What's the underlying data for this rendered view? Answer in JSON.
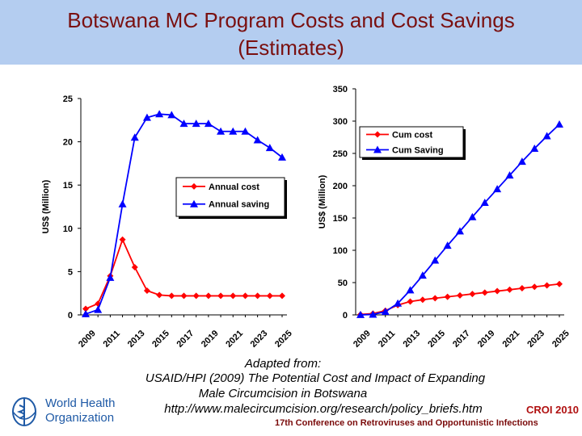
{
  "title": {
    "line1": "Botswana MC Program Costs and Cost Savings",
    "line2": "(Estimates)"
  },
  "chart_data": [
    {
      "type": "line",
      "ylabel": "US$ (Million)",
      "ylim": [
        0,
        25
      ],
      "yticks": [
        "0",
        "5",
        "10",
        "15",
        "20",
        "25"
      ],
      "xticks": [
        "2009",
        "2011",
        "2013",
        "2015",
        "2017",
        "2019",
        "2021",
        "2023",
        "2025"
      ],
      "x": [
        2009,
        2010,
        2011,
        2012,
        2013,
        2014,
        2015,
        2016,
        2017,
        2018,
        2019,
        2020,
        2021,
        2022,
        2023,
        2024,
        2025
      ],
      "legend_position": "center-right",
      "grid": false,
      "series": [
        {
          "name": "Annual cost",
          "color": "#ff0000",
          "marker": "diamond",
          "values": [
            0.7,
            1.3,
            4.5,
            8.7,
            5.5,
            2.8,
            2.3,
            2.2,
            2.2,
            2.2,
            2.2,
            2.2,
            2.2,
            2.2,
            2.2,
            2.2,
            2.2
          ]
        },
        {
          "name": "Annual saving",
          "color": "#0000ff",
          "marker": "triangle",
          "values": [
            0.1,
            0.6,
            4.3,
            12.8,
            20.5,
            22.8,
            23.2,
            23.1,
            22.1,
            22.1,
            22.1,
            21.2,
            21.2,
            21.2,
            20.2,
            19.3,
            18.2
          ]
        }
      ]
    },
    {
      "type": "line",
      "ylabel": "US$ (Million)",
      "ylim": [
        0,
        350
      ],
      "yticks": [
        "0",
        "50",
        "100",
        "150",
        "200",
        "250",
        "300",
        "350"
      ],
      "xticks": [
        "2009",
        "2011",
        "2013",
        "2015",
        "2017",
        "2019",
        "2021",
        "2023",
        "2025"
      ],
      "x": [
        2009,
        2010,
        2011,
        2012,
        2013,
        2014,
        2015,
        2016,
        2017,
        2018,
        2019,
        2020,
        2021,
        2022,
        2023,
        2024,
        2025
      ],
      "legend_position": "top-left",
      "grid": false,
      "series": [
        {
          "name": "Cum cost",
          "color": "#ff0000",
          "marker": "diamond",
          "values": [
            0.7,
            2,
            6.5,
            15.2,
            20.7,
            23.5,
            25.8,
            28,
            30.2,
            32.4,
            34.6,
            36.8,
            39,
            41.2,
            43.4,
            45.6,
            47.8
          ]
        },
        {
          "name": "Cum Saving",
          "color": "#0000ff",
          "marker": "triangle",
          "values": [
            0.1,
            0.7,
            5,
            17.8,
            38.3,
            61.1,
            84.3,
            107.4,
            129.5,
            151.6,
            173.7,
            194.9,
            216.1,
            237.3,
            257.5,
            276.8,
            295
          ]
        }
      ]
    }
  ],
  "source": {
    "line1": "Adapted from:",
    "line2": "USAID/HPI (2009) The Potential Cost and Impact of Expanding",
    "line3": "Male Circumcision in Botswana",
    "line4": "http://www.malecircumcision.org/research/policy_briefs.htm"
  },
  "logo": {
    "line1": "World Health",
    "line2": "Organization",
    "color": "#1f5aa6"
  },
  "footer": {
    "croi": "CROI 2010",
    "conference": "17th Conference on Retroviruses and Opportunistic Infections"
  }
}
